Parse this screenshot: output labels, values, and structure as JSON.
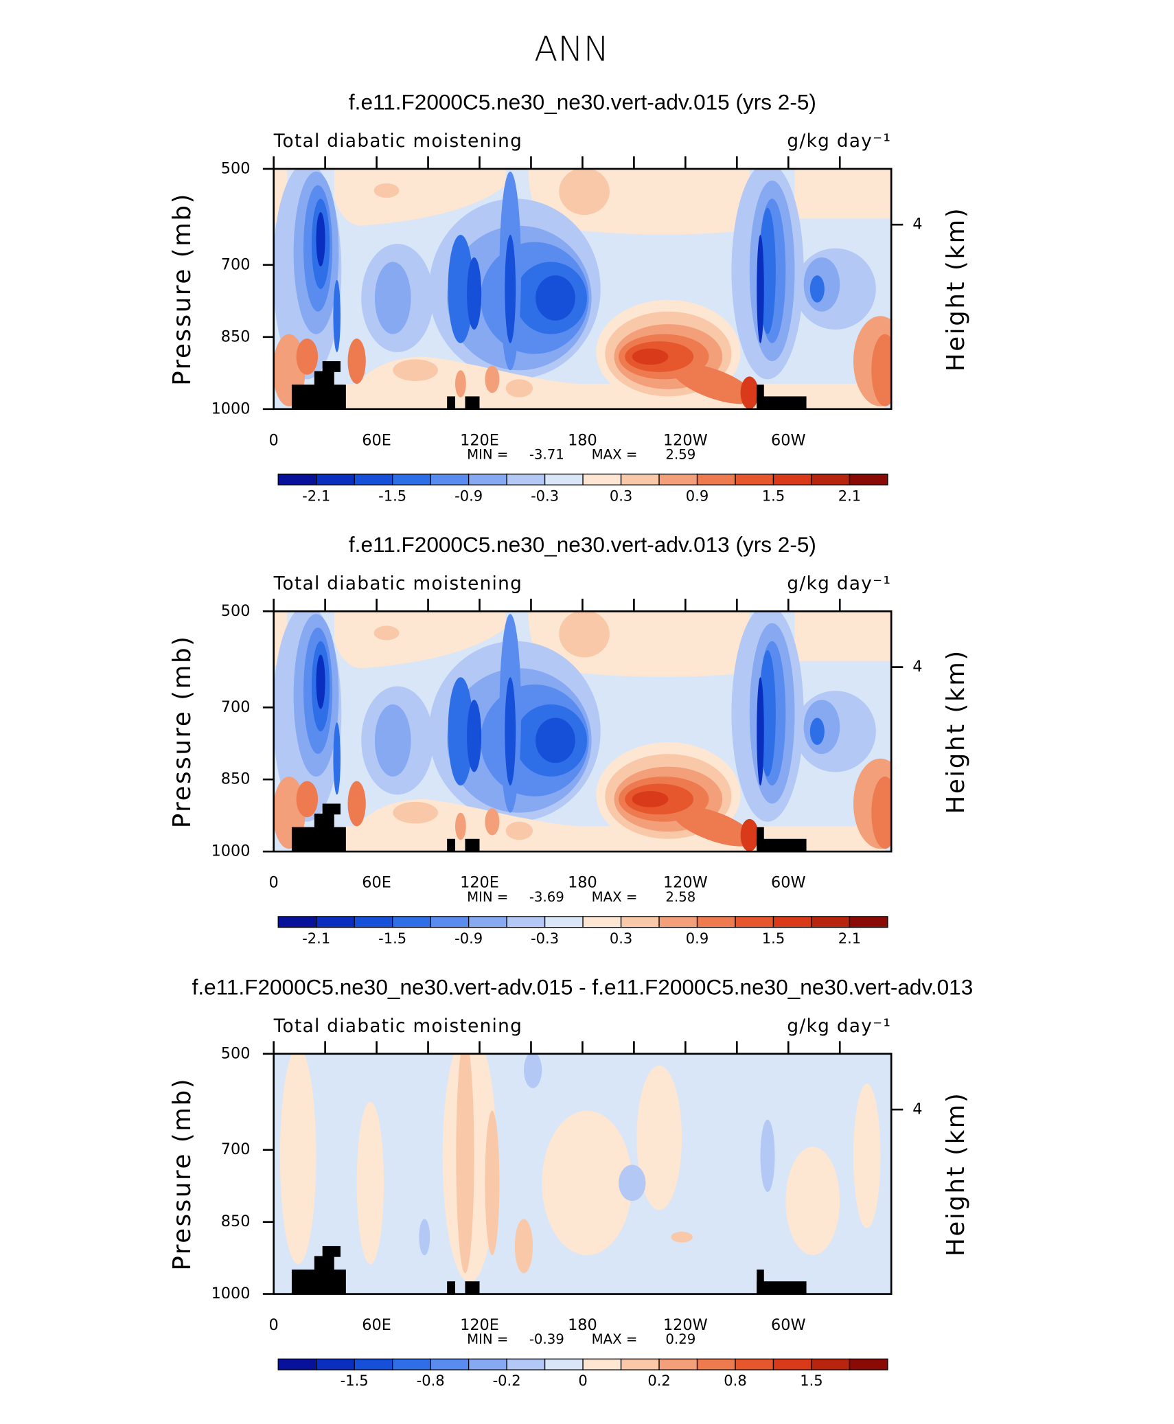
{
  "title": "ANN",
  "chart_data": [
    {
      "type": "contour",
      "title": "f.e11.F2000C5.ne30_ne30.vert-adv.015 (yrs 2-5)",
      "left_label": "Total diabatic moistening",
      "right_label": "g/kg day⁻¹",
      "ylabel": "Pressure (mb)",
      "y2label": "Height (km)",
      "xlim": [
        0,
        360
      ],
      "xticks": [
        0,
        {
          "value": 60,
          "label": "60E"
        },
        {
          "value": 120,
          "label": "120E"
        },
        180,
        {
          "value": 240,
          "label": "120W"
        },
        {
          "value": 300,
          "label": "60W"
        }
      ],
      "minor_xticks": [
        30,
        90,
        150,
        210,
        270,
        330
      ],
      "ylim": [
        1000,
        500
      ],
      "yticks": [
        500,
        700,
        850,
        1000
      ],
      "y2ticks": [
        4
      ],
      "min_label": "MIN =",
      "min": -3.71,
      "max_label": "MAX =",
      "max": 2.59,
      "colorbar": {
        "colors": [
          "#08119a",
          "#0a2fbf",
          "#1650d8",
          "#2e6fe8",
          "#5a8cef",
          "#86a9f2",
          "#b3c8f5",
          "#d8e6f8",
          "#fde6d2",
          "#f9c8a8",
          "#f3a07a",
          "#ee7a50",
          "#e6572e",
          "#d83a1a",
          "#b8250f",
          "#8a0a05"
        ],
        "labels": [
          -2.1,
          -1.5,
          -0.9,
          -0.3,
          0.3,
          0.9,
          1.5,
          2.1
        ]
      }
    },
    {
      "type": "contour",
      "title": "f.e11.F2000C5.ne30_ne30.vert-adv.013 (yrs 2-5)",
      "left_label": "Total diabatic moistening",
      "right_label": "g/kg day⁻¹",
      "ylabel": "Pressure (mb)",
      "y2label": "Height (km)",
      "xlim": [
        0,
        360
      ],
      "xticks": [
        0,
        {
          "value": 60,
          "label": "60E"
        },
        {
          "value": 120,
          "label": "120E"
        },
        180,
        {
          "value": 240,
          "label": "120W"
        },
        {
          "value": 300,
          "label": "60W"
        }
      ],
      "minor_xticks": [
        30,
        90,
        150,
        210,
        270,
        330
      ],
      "ylim": [
        1000,
        500
      ],
      "yticks": [
        500,
        700,
        850,
        1000
      ],
      "y2ticks": [
        4
      ],
      "min_label": "MIN =",
      "min": -3.69,
      "max_label": "MAX =",
      "max": 2.58,
      "colorbar": {
        "colors": [
          "#08119a",
          "#0a2fbf",
          "#1650d8",
          "#2e6fe8",
          "#5a8cef",
          "#86a9f2",
          "#b3c8f5",
          "#d8e6f8",
          "#fde6d2",
          "#f9c8a8",
          "#f3a07a",
          "#ee7a50",
          "#e6572e",
          "#d83a1a",
          "#b8250f",
          "#8a0a05"
        ],
        "labels": [
          -2.1,
          -1.5,
          -0.9,
          -0.3,
          0.3,
          0.9,
          1.5,
          2.1
        ]
      }
    },
    {
      "type": "contour",
      "title": "f.e11.F2000C5.ne30_ne30.vert-adv.015 - f.e11.F2000C5.ne30_ne30.vert-adv.013",
      "left_label": "Total diabatic moistening",
      "right_label": "g/kg day⁻¹",
      "ylabel": "Pressure (mb)",
      "y2label": "Height (km)",
      "xlim": [
        0,
        360
      ],
      "xticks": [
        0,
        {
          "value": 60,
          "label": "60E"
        },
        {
          "value": 120,
          "label": "120E"
        },
        180,
        {
          "value": 240,
          "label": "120W"
        },
        {
          "value": 300,
          "label": "60W"
        }
      ],
      "minor_xticks": [
        30,
        90,
        150,
        210,
        270,
        330
      ],
      "ylim": [
        1000,
        500
      ],
      "yticks": [
        500,
        700,
        850,
        1000
      ],
      "y2ticks": [
        4
      ],
      "min_label": "MIN =",
      "min": -0.39,
      "max_label": "MAX =",
      "max": 0.29,
      "colorbar": {
        "colors": [
          "#08119a",
          "#0a2fbf",
          "#1650d8",
          "#2e6fe8",
          "#5a8cef",
          "#86a9f2",
          "#b3c8f5",
          "#d8e6f8",
          "#fde6d2",
          "#f9c8a8",
          "#f3a07a",
          "#ee7a50",
          "#e6572e",
          "#d83a1a",
          "#b8250f",
          "#8a0a05"
        ],
        "labels": [
          -1.5,
          -0.8,
          -0.2,
          0,
          0.2,
          0.8,
          1.5
        ]
      }
    }
  ]
}
